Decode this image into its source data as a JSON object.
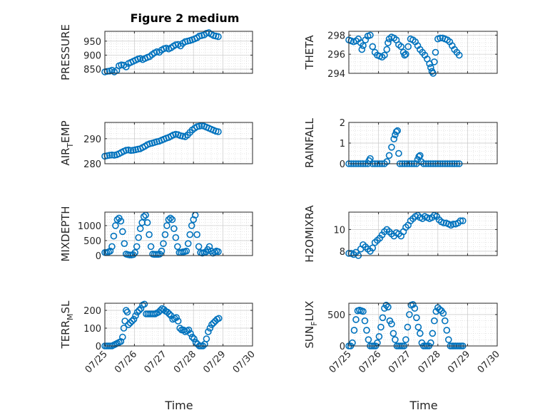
{
  "colors": {
    "marker": "#0072BD",
    "axis": "#262626"
  },
  "figure_title": "Figure 2 medium",
  "chart_data": [
    {
      "type": "scatter",
      "panel": "pressure",
      "title": "Figure 2 medium",
      "ylabel": "PRESSURE",
      "ylabel_sub": "",
      "ylabel_tail": "",
      "ylim": [
        835,
        985
      ],
      "yticks": [
        850,
        900,
        950
      ],
      "xlim": [
        0,
        5
      ],
      "xticks": [
        "07/25",
        "07/26",
        "07/27",
        "07/28",
        "07/29",
        "07/30"
      ],
      "x": [
        0,
        0.08,
        0.16,
        0.24,
        0.32,
        0.4,
        0.48,
        0.56,
        0.64,
        0.72,
        0.8,
        0.88,
        0.96,
        1.04,
        1.12,
        1.2,
        1.28,
        1.36,
        1.44,
        1.52,
        1.6,
        1.68,
        1.76,
        1.84,
        1.92,
        2.0,
        2.08,
        2.16,
        2.24,
        2.32,
        2.4,
        2.48,
        2.56,
        2.64,
        2.72,
        2.8,
        2.88,
        2.96,
        3.04,
        3.12,
        3.2,
        3.28,
        3.36,
        3.44,
        3.52,
        3.6,
        3.68,
        3.76,
        3.84
      ],
      "y": [
        840,
        842,
        843,
        846,
        840,
        845,
        862,
        865,
        864,
        858,
        870,
        874,
        878,
        882,
        886,
        888,
        884,
        888,
        892,
        895,
        902,
        908,
        912,
        910,
        918,
        923,
        925,
        922,
        926,
        932,
        937,
        938,
        933,
        942,
        948,
        950,
        952,
        955,
        958,
        962,
        968,
        970,
        972,
        978,
        980,
        975,
        970,
        968,
        966
      ]
    },
    {
      "type": "scatter",
      "panel": "theta",
      "title": "",
      "ylabel": "THETA",
      "ylabel_sub": "",
      "ylabel_tail": "",
      "ylim": [
        294,
        298.4
      ],
      "yticks": [
        294,
        296,
        298
      ],
      "xlim": [
        0,
        5
      ],
      "xticks": [
        "07/25",
        "07/26",
        "07/27",
        "07/28",
        "07/29",
        "07/30"
      ],
      "x": [
        0,
        0.08,
        0.16,
        0.24,
        0.32,
        0.4,
        0.44,
        0.48,
        0.56,
        0.64,
        0.72,
        0.8,
        0.88,
        0.96,
        1.04,
        1.12,
        1.2,
        1.28,
        1.32,
        1.36,
        1.44,
        1.52,
        1.6,
        1.68,
        1.76,
        1.84,
        1.88,
        1.92,
        2.0,
        2.08,
        2.16,
        2.24,
        2.32,
        2.4,
        2.48,
        2.56,
        2.64,
        2.72,
        2.76,
        2.8,
        2.84,
        2.88,
        2.92,
        3.0,
        3.08,
        3.16,
        3.24,
        3.32,
        3.4,
        3.48,
        3.56,
        3.64,
        3.72
      ],
      "y": [
        297.5,
        297.4,
        297.3,
        297.4,
        297.6,
        297.2,
        296.5,
        296.9,
        297.5,
        297.9,
        298.0,
        296.8,
        296.2,
        295.9,
        295.8,
        295.7,
        295.9,
        296.5,
        297.2,
        297.6,
        297.8,
        297.7,
        297.5,
        297.0,
        296.8,
        296.2,
        295.9,
        296.0,
        296.8,
        297.6,
        297.5,
        297.3,
        296.9,
        296.5,
        296.2,
        295.9,
        295.5,
        295.0,
        294.6,
        294.2,
        294.0,
        295.2,
        296.2,
        297.6,
        297.7,
        297.7,
        297.6,
        297.5,
        297.3,
        296.9,
        296.5,
        296.2,
        295.9
      ]
    },
    {
      "type": "scatter",
      "panel": "airtemp",
      "title": "",
      "ylabel": "AIR",
      "ylabel_sub": "T",
      "ylabel_tail": "EMP",
      "ylim": [
        280,
        296.5
      ],
      "yticks": [
        280,
        290
      ],
      "xlim": [
        0,
        5
      ],
      "xticks": [
        "07/25",
        "07/26",
        "07/27",
        "07/28",
        "07/29",
        "07/30"
      ],
      "x": [
        0,
        0.08,
        0.16,
        0.24,
        0.32,
        0.4,
        0.48,
        0.56,
        0.64,
        0.72,
        0.8,
        0.88,
        0.96,
        1.04,
        1.12,
        1.2,
        1.28,
        1.36,
        1.44,
        1.52,
        1.6,
        1.68,
        1.76,
        1.84,
        1.92,
        2.0,
        2.08,
        2.16,
        2.24,
        2.32,
        2.4,
        2.48,
        2.56,
        2.64,
        2.72,
        2.8,
        2.88,
        2.96,
        3.04,
        3.12,
        3.2,
        3.28,
        3.36,
        3.44,
        3.52,
        3.6,
        3.68,
        3.76,
        3.84
      ],
      "y": [
        283.0,
        283.2,
        283.4,
        283.5,
        283.4,
        283.6,
        284.0,
        284.5,
        285.0,
        285.4,
        285.5,
        285.3,
        285.4,
        285.6,
        285.8,
        286.0,
        286.5,
        287.0,
        287.6,
        288.0,
        288.2,
        288.5,
        288.8,
        289.0,
        289.4,
        289.8,
        290.2,
        290.5,
        291.0,
        291.5,
        291.8,
        291.6,
        291.2,
        291.0,
        290.8,
        291.5,
        292.5,
        293.5,
        294.2,
        294.8,
        295.0,
        295.2,
        295.0,
        294.6,
        294.2,
        293.8,
        293.4,
        293.0,
        292.8
      ]
    },
    {
      "type": "scatter",
      "panel": "rainfall",
      "title": "",
      "ylabel": "RAINFALL",
      "ylabel_sub": "",
      "ylabel_tail": "",
      "ylim": [
        0,
        2
      ],
      "yticks": [
        0,
        1,
        2
      ],
      "xlim": [
        0,
        5
      ],
      "xticks": [
        "07/25",
        "07/26",
        "07/27",
        "07/28",
        "07/29",
        "07/30"
      ],
      "x": [
        0,
        0.08,
        0.16,
        0.24,
        0.32,
        0.4,
        0.48,
        0.56,
        0.64,
        0.68,
        0.72,
        0.8,
        0.88,
        0.96,
        1.04,
        1.12,
        1.2,
        1.28,
        1.36,
        1.44,
        1.52,
        1.56,
        1.6,
        1.64,
        1.68,
        1.72,
        1.8,
        1.88,
        1.96,
        2.04,
        2.12,
        2.2,
        2.28,
        2.32,
        2.36,
        2.4,
        2.44,
        2.52,
        2.6,
        2.68,
        2.76,
        2.84,
        2.92,
        3.0,
        3.08,
        3.16,
        3.24,
        3.32,
        3.4,
        3.48,
        3.56,
        3.64,
        3.72
      ],
      "y": [
        0,
        0,
        0,
        0,
        0,
        0,
        0,
        0,
        0,
        0.15,
        0.25,
        0,
        0,
        0,
        0,
        0,
        0,
        0.1,
        0.4,
        0.8,
        1.2,
        1.4,
        1.55,
        1.6,
        0.5,
        0,
        0,
        0,
        0,
        0,
        0,
        0,
        0,
        0.2,
        0.35,
        0.4,
        0.1,
        0,
        0,
        0,
        0,
        0,
        0,
        0,
        0,
        0,
        0,
        0,
        0,
        0,
        0,
        0,
        0
      ]
    },
    {
      "type": "scatter",
      "panel": "mixdepth",
      "title": "",
      "ylabel": "MIXDEPTH",
      "ylabel_sub": "",
      "ylabel_tail": "",
      "ylim": [
        0,
        1450
      ],
      "yticks": [
        0,
        500,
        1000
      ],
      "xlim": [
        0,
        5
      ],
      "xticks": [
        "07/25",
        "07/26",
        "07/27",
        "07/28",
        "07/29",
        "07/30"
      ],
      "x": [
        0,
        0.06,
        0.12,
        0.18,
        0.24,
        0.3,
        0.36,
        0.42,
        0.48,
        0.54,
        0.6,
        0.66,
        0.72,
        0.78,
        0.84,
        0.9,
        0.96,
        1.02,
        1.08,
        1.14,
        1.2,
        1.26,
        1.32,
        1.38,
        1.44,
        1.5,
        1.56,
        1.62,
        1.68,
        1.74,
        1.8,
        1.86,
        1.92,
        1.98,
        2.04,
        2.1,
        2.16,
        2.22,
        2.28,
        2.34,
        2.4,
        2.46,
        2.52,
        2.58,
        2.64,
        2.7,
        2.76,
        2.82,
        2.88,
        2.94,
        3.0,
        3.06,
        3.12,
        3.18,
        3.24,
        3.3,
        3.36,
        3.42,
        3.48,
        3.54,
        3.6,
        3.66,
        3.72,
        3.78,
        3.84
      ],
      "y": [
        100,
        100,
        120,
        150,
        300,
        650,
        1000,
        1200,
        1250,
        1150,
        800,
        400,
        50,
        30,
        20,
        20,
        30,
        100,
        300,
        600,
        900,
        1100,
        1300,
        1350,
        1100,
        700,
        300,
        50,
        40,
        40,
        40,
        50,
        150,
        400,
        700,
        1000,
        1200,
        1250,
        1200,
        900,
        600,
        300,
        100,
        100,
        120,
        130,
        150,
        400,
        700,
        1000,
        1200,
        1350,
        700,
        300,
        100,
        80,
        100,
        120,
        200,
        300,
        150,
        80,
        120,
        150,
        130
      ]
    },
    {
      "type": "scatter",
      "panel": "h2omixra",
      "title": "",
      "ylabel": "H2OMIXRA",
      "ylabel_sub": "",
      "ylabel_tail": "",
      "ylim": [
        7.6,
        11.6
      ],
      "yticks": [
        8,
        10
      ],
      "xlim": [
        0,
        5
      ],
      "xticks": [
        "07/25",
        "07/26",
        "07/27",
        "07/28",
        "07/29",
        "07/30"
      ],
      "x": [
        0,
        0.08,
        0.16,
        0.24,
        0.32,
        0.4,
        0.48,
        0.56,
        0.64,
        0.72,
        0.8,
        0.88,
        0.96,
        1.04,
        1.12,
        1.2,
        1.28,
        1.36,
        1.44,
        1.52,
        1.6,
        1.68,
        1.76,
        1.84,
        1.92,
        2.0,
        2.08,
        2.16,
        2.24,
        2.32,
        2.4,
        2.48,
        2.56,
        2.64,
        2.72,
        2.8,
        2.88,
        2.96,
        3.04,
        3.12,
        3.2,
        3.28,
        3.36,
        3.44,
        3.52,
        3.6,
        3.68,
        3.76,
        3.84
      ],
      "y": [
        7.8,
        7.8,
        7.7,
        7.9,
        7.6,
        8.2,
        8.6,
        8.4,
        8.2,
        8.0,
        8.3,
        8.8,
        9.0,
        9.2,
        9.5,
        9.8,
        10.0,
        9.8,
        9.6,
        9.4,
        9.7,
        9.6,
        9.4,
        9.8,
        10.2,
        10.4,
        10.8,
        11.0,
        11.2,
        11.3,
        11.1,
        11.0,
        11.2,
        11.1,
        11.0,
        11.1,
        11.3,
        11.2,
        10.9,
        10.7,
        10.6,
        10.6,
        10.5,
        10.4,
        10.5,
        10.5,
        10.6,
        10.8,
        10.8
      ]
    },
    {
      "type": "scatter",
      "panel": "terrmsl",
      "title": "",
      "ylabel": "TERR",
      "ylabel_sub": "M",
      "ylabel_tail": "SL",
      "ylim": [
        0,
        240
      ],
      "yticks": [
        0,
        100,
        200
      ],
      "xlim": [
        0,
        5
      ],
      "xticks": [
        "07/25",
        "07/26",
        "07/27",
        "07/28",
        "07/29",
        "07/30"
      ],
      "x": [
        0,
        0.06,
        0.12,
        0.18,
        0.24,
        0.3,
        0.36,
        0.42,
        0.48,
        0.54,
        0.6,
        0.64,
        0.68,
        0.72,
        0.76,
        0.8,
        0.86,
        0.92,
        0.98,
        1.04,
        1.1,
        1.16,
        1.22,
        1.28,
        1.34,
        1.4,
        1.46,
        1.52,
        1.58,
        1.64,
        1.7,
        1.76,
        1.82,
        1.88,
        1.94,
        2.0,
        2.06,
        2.12,
        2.18,
        2.24,
        2.3,
        2.36,
        2.42,
        2.48,
        2.54,
        2.6,
        2.66,
        2.72,
        2.78,
        2.84,
        2.9,
        2.96,
        3.02,
        3.08,
        3.14,
        3.2,
        3.26,
        3.32,
        3.38,
        3.44,
        3.5,
        3.56,
        3.62,
        3.68,
        3.74,
        3.8,
        3.86
      ],
      "y": [
        0,
        0,
        0,
        0,
        0,
        5,
        10,
        15,
        20,
        25,
        50,
        100,
        140,
        200,
        190,
        120,
        130,
        140,
        150,
        170,
        190,
        200,
        210,
        230,
        235,
        180,
        180,
        180,
        180,
        180,
        180,
        185,
        190,
        200,
        210,
        205,
        195,
        190,
        180,
        170,
        150,
        155,
        160,
        140,
        100,
        90,
        90,
        80,
        85,
        90,
        70,
        50,
        40,
        20,
        10,
        0,
        0,
        0,
        10,
        40,
        80,
        100,
        120,
        130,
        140,
        150,
        155
      ]
    },
    {
      "type": "scatter",
      "panel": "sunflux",
      "title": "",
      "ylabel": "SUN",
      "ylabel_sub": "F",
      "ylabel_tail": "LUX",
      "ylim": [
        0,
        680
      ],
      "yticks": [
        0,
        500
      ],
      "xlim": [
        0,
        5
      ],
      "xticks": [
        "07/25",
        "07/26",
        "07/27",
        "07/28",
        "07/29",
        "07/30"
      ],
      "x": [
        0,
        0.06,
        0.12,
        0.18,
        0.24,
        0.3,
        0.36,
        0.42,
        0.48,
        0.54,
        0.6,
        0.66,
        0.72,
        0.78,
        0.84,
        0.9,
        0.96,
        1.02,
        1.08,
        1.14,
        1.2,
        1.26,
        1.32,
        1.38,
        1.44,
        1.5,
        1.56,
        1.62,
        1.68,
        1.74,
        1.8,
        1.86,
        1.92,
        1.98,
        2.04,
        2.1,
        2.16,
        2.22,
        2.28,
        2.34,
        2.4,
        2.46,
        2.52,
        2.58,
        2.64,
        2.7,
        2.76,
        2.82,
        2.88,
        2.94,
        3.0,
        3.06,
        3.12,
        3.18,
        3.24,
        3.3,
        3.36,
        3.42,
        3.48,
        3.54,
        3.6,
        3.66,
        3.72,
        3.78,
        3.84
      ],
      "y": [
        0,
        0,
        50,
        250,
        420,
        560,
        570,
        560,
        550,
        400,
        250,
        100,
        0,
        0,
        0,
        0,
        50,
        150,
        300,
        450,
        600,
        650,
        620,
        400,
        350,
        200,
        100,
        0,
        0,
        0,
        0,
        0,
        100,
        300,
        500,
        650,
        660,
        600,
        450,
        300,
        200,
        50,
        0,
        0,
        0,
        0,
        50,
        200,
        400,
        550,
        610,
        580,
        560,
        520,
        400,
        250,
        100,
        0,
        0,
        0,
        0,
        0,
        0,
        0,
        0
      ]
    }
  ],
  "xlabel": "Time"
}
